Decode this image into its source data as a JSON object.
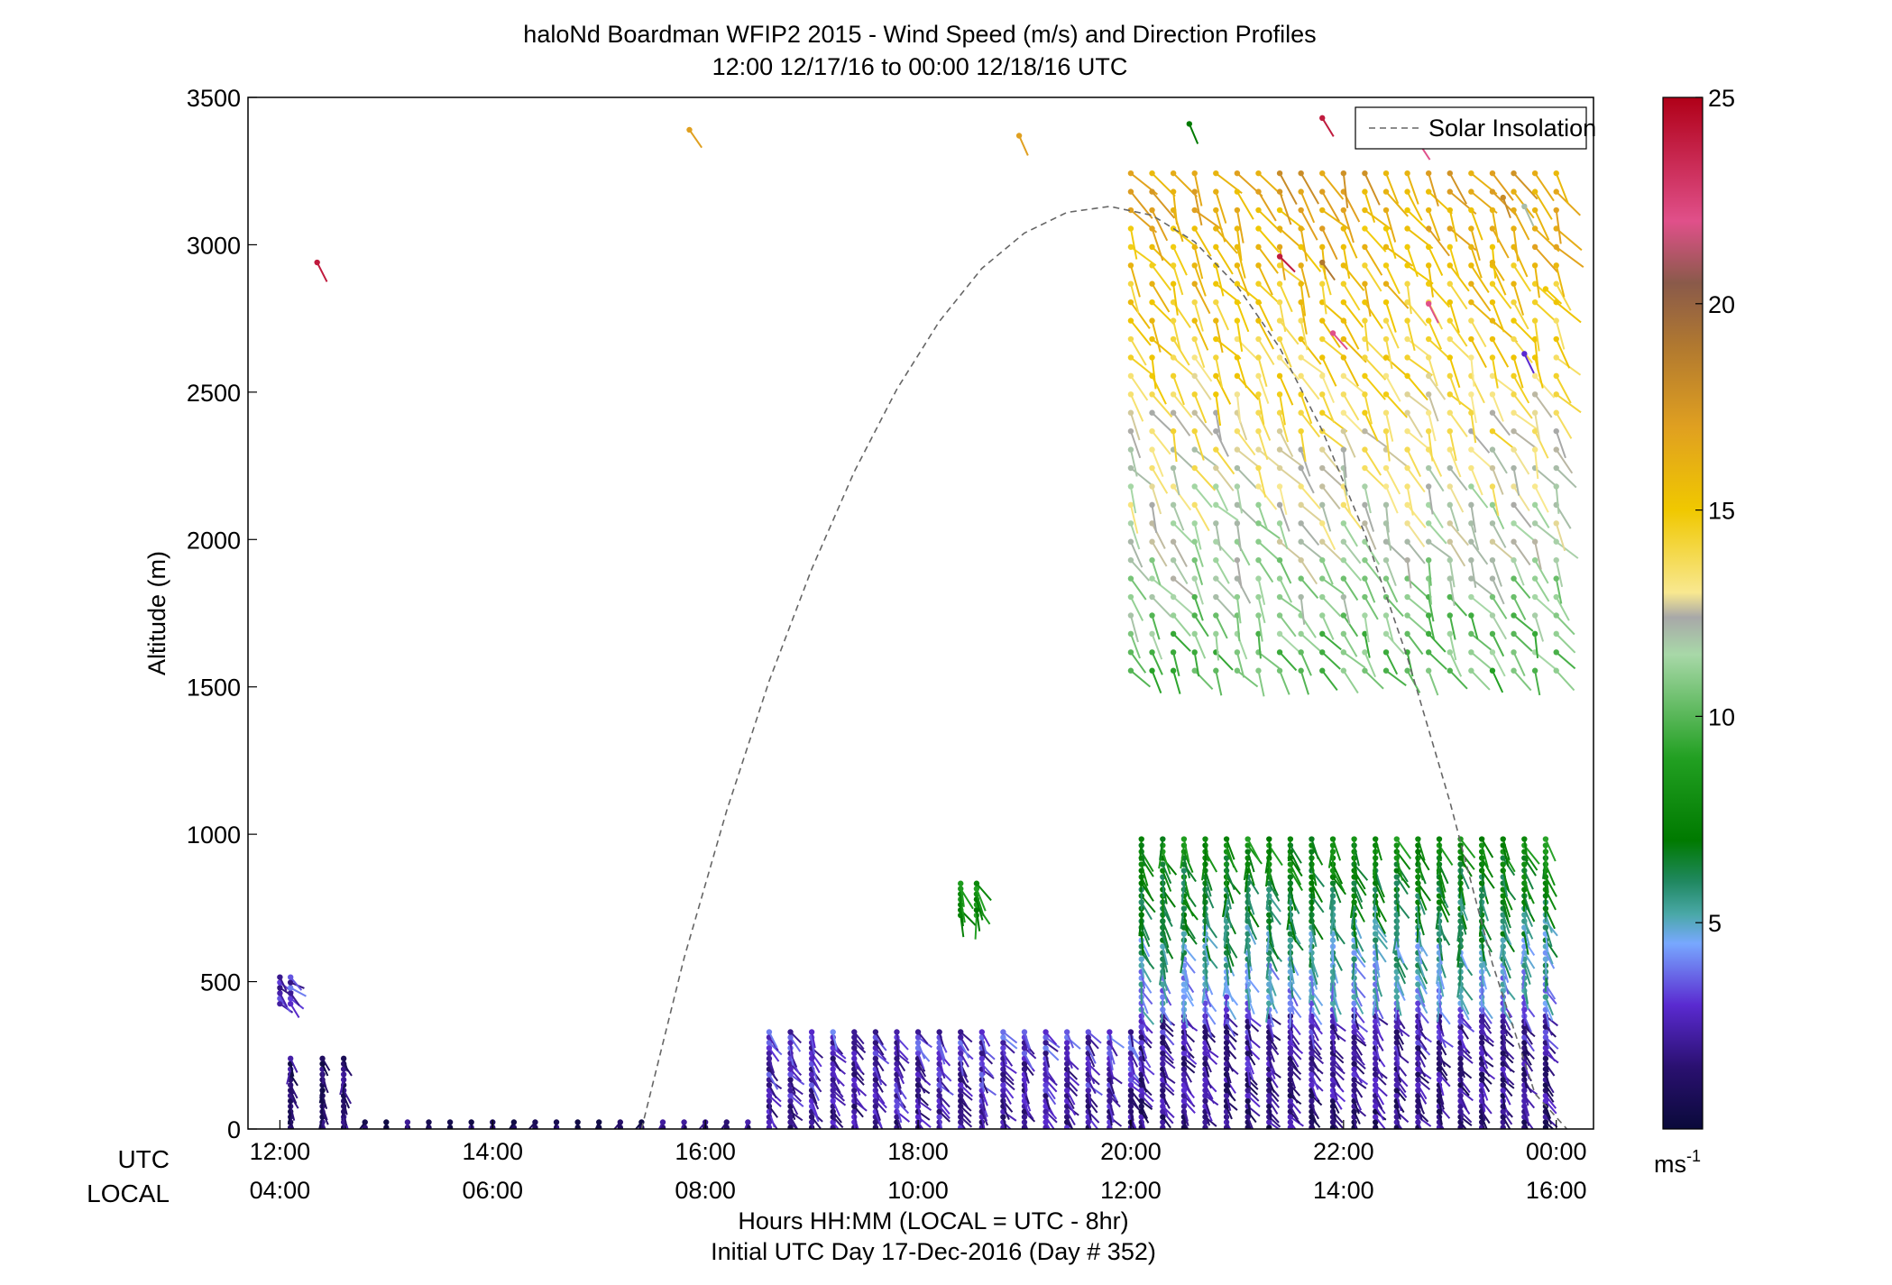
{
  "chart_data": {
    "type": "scatter",
    "title": "haloNd Boardman WFIP2 2015 - Wind Speed (m/s) and Direction Profiles",
    "subtitle": "12:00 12/17/16 to 00:00 12/18/16  UTC",
    "ylabel": "Altitude (m)",
    "xlabel": "Hours HH:MM  (LOCAL = UTC - 8hr)",
    "xlabel2": "Initial UTC Day 17-Dec-2016 (Day # 352)",
    "x_row_labels": [
      "UTC",
      "LOCAL"
    ],
    "xlim": [
      11.7,
      24.35
    ],
    "ylim": [
      0,
      3500
    ],
    "y_ticks": [
      0,
      500,
      1000,
      1500,
      2000,
      2500,
      3000,
      3500
    ],
    "x_ticks_utc": [
      {
        "x": 12,
        "label": "12:00"
      },
      {
        "x": 14,
        "label": "14:00"
      },
      {
        "x": 16,
        "label": "16:00"
      },
      {
        "x": 18,
        "label": "18:00"
      },
      {
        "x": 20,
        "label": "20:00"
      },
      {
        "x": 22,
        "label": "22:00"
      },
      {
        "x": 24,
        "label": "00:00"
      }
    ],
    "x_ticks_local": [
      "04:00",
      "06:00",
      "08:00",
      "10:00",
      "12:00",
      "14:00",
      "16:00"
    ],
    "legend": {
      "label": "Solar Insolation",
      "placement": "top-right",
      "style": "dashed",
      "color": "#666666"
    },
    "solar_insolation_curve": {
      "x": [
        15.4,
        15.8,
        16.2,
        16.6,
        17.0,
        17.4,
        17.8,
        18.2,
        18.6,
        19.0,
        19.4,
        19.8,
        20.2,
        20.6,
        21.0,
        21.4,
        21.8,
        22.2,
        22.6,
        23.0,
        23.4,
        23.8,
        24.1
      ],
      "y": [
        0,
        580,
        1080,
        1520,
        1900,
        2230,
        2510,
        2740,
        2920,
        3040,
        3110,
        3130,
        3100,
        3010,
        2860,
        2650,
        2370,
        2020,
        1600,
        1110,
        560,
        120,
        0
      ]
    },
    "colorbar": {
      "label": "ms-1",
      "label_main": "ms",
      "label_sup": "-1",
      "min": 0,
      "max": 25,
      "ticks": [
        5,
        10,
        15,
        20,
        25
      ],
      "stops": [
        {
          "v": 0,
          "color": "#0a0a3a"
        },
        {
          "v": 1.5,
          "color": "#2a1070"
        },
        {
          "v": 3,
          "color": "#5a2ad0"
        },
        {
          "v": 4.5,
          "color": "#78a8ff"
        },
        {
          "v": 5.2,
          "color": "#4aa8a8"
        },
        {
          "v": 6,
          "color": "#208860"
        },
        {
          "v": 7,
          "color": "#007a00"
        },
        {
          "v": 9,
          "color": "#22a022"
        },
        {
          "v": 11.5,
          "color": "#a8d8a8"
        },
        {
          "v": 12.4,
          "color": "#a8a8a8"
        },
        {
          "v": 13,
          "color": "#f8e890"
        },
        {
          "v": 15,
          "color": "#f0c800"
        },
        {
          "v": 17,
          "color": "#e0a020"
        },
        {
          "v": 19,
          "color": "#b07830"
        },
        {
          "v": 20.5,
          "color": "#8a5a4a"
        },
        {
          "v": 22,
          "color": "#e0508a"
        },
        {
          "v": 25,
          "color": "#b00018"
        }
      ]
    },
    "series": [
      {
        "x": [
          12.1,
          12.4,
          12.6
        ],
        "alt_range": [
          0,
          240
        ],
        "speed": [
          1.5,
          1.2,
          1.8
        ],
        "dir_deg": 80
      },
      {
        "x": [
          12.0,
          12.1
        ],
        "alt_range": [
          420,
          530
        ],
        "speed": [
          3,
          3
        ],
        "dir_deg": 40
      },
      {
        "x": [
          12.8,
          13.0,
          13.2,
          13.4,
          13.6,
          13.8,
          14.0,
          14.2,
          14.4,
          14.6,
          14.8,
          15.0,
          15.2,
          15.4,
          15.6,
          15.8,
          16.0,
          16.2,
          16.4
        ],
        "alt_range": [
          0,
          40
        ],
        "speed": [
          1.2
        ],
        "dir_deg": 110
      },
      {
        "x": [
          16.6,
          16.8,
          17.0,
          17.2,
          17.4,
          17.6,
          17.8,
          18.0,
          18.2,
          18.4,
          18.6,
          18.8,
          19.0,
          19.2,
          19.4,
          19.6,
          19.8,
          20.0
        ],
        "alt_range": [
          0,
          330
        ],
        "speed": [
          2,
          3
        ],
        "dir_deg": 60
      },
      {
        "x": [
          18.4,
          18.55
        ],
        "alt_range": [
          720,
          850
        ],
        "speed": [
          8
        ],
        "dir_deg": 70
      },
      {
        "x": [
          20.1,
          20.3,
          20.5,
          20.7,
          20.9,
          21.1,
          21.3,
          21.5,
          21.7,
          21.9,
          22.1,
          22.3,
          22.5,
          22.7,
          22.9,
          23.1,
          23.3,
          23.5,
          23.7,
          23.9
        ],
        "alt_range": [
          0,
          400
        ],
        "speed": [
          1.5,
          2.5
        ],
        "dir_deg": 60
      },
      {
        "x": [
          20.1,
          20.3,
          20.5,
          20.7,
          20.9,
          21.1,
          21.3,
          21.5,
          21.7,
          21.9,
          22.1,
          22.3,
          22.5,
          22.7,
          22.9,
          23.1,
          23.3,
          23.5,
          23.7,
          23.9
        ],
        "alt_range": [
          400,
          1000
        ],
        "speed": [
          4,
          8
        ],
        "dir_deg": 75
      },
      {
        "x": [
          20.0,
          20.2,
          20.4,
          20.6,
          20.8,
          21.0,
          21.2,
          21.4,
          21.6,
          21.8,
          22.0,
          22.2,
          22.4,
          22.6,
          22.8,
          23.0,
          23.2,
          23.4,
          23.6,
          23.8,
          24.0
        ],
        "alt_range": [
          1550,
          3300
        ],
        "speed": [
          10,
          17
        ],
        "dir_deg": 60
      }
    ],
    "isolated_points": [
      {
        "x": 12.35,
        "y": 2940,
        "speed": 24
      },
      {
        "x": 15.85,
        "y": 3390,
        "speed": 17
      },
      {
        "x": 18.95,
        "y": 3370,
        "speed": 17
      },
      {
        "x": 20.55,
        "y": 3410,
        "speed": 7
      },
      {
        "x": 21.8,
        "y": 3430,
        "speed": 24
      },
      {
        "x": 22.7,
        "y": 3350,
        "speed": 22
      },
      {
        "x": 23.5,
        "y": 3160,
        "speed": 18
      },
      {
        "x": 23.7,
        "y": 3130,
        "speed": 12
      },
      {
        "x": 21.4,
        "y": 2960,
        "speed": 24
      },
      {
        "x": 21.8,
        "y": 2940,
        "speed": 19
      },
      {
        "x": 23.4,
        "y": 2940,
        "speed": 16
      },
      {
        "x": 23.9,
        "y": 2850,
        "speed": 15
      },
      {
        "x": 22.8,
        "y": 2800,
        "speed": 22
      },
      {
        "x": 21.9,
        "y": 2700,
        "speed": 22
      },
      {
        "x": 23.7,
        "y": 2630,
        "speed": 3
      }
    ]
  }
}
